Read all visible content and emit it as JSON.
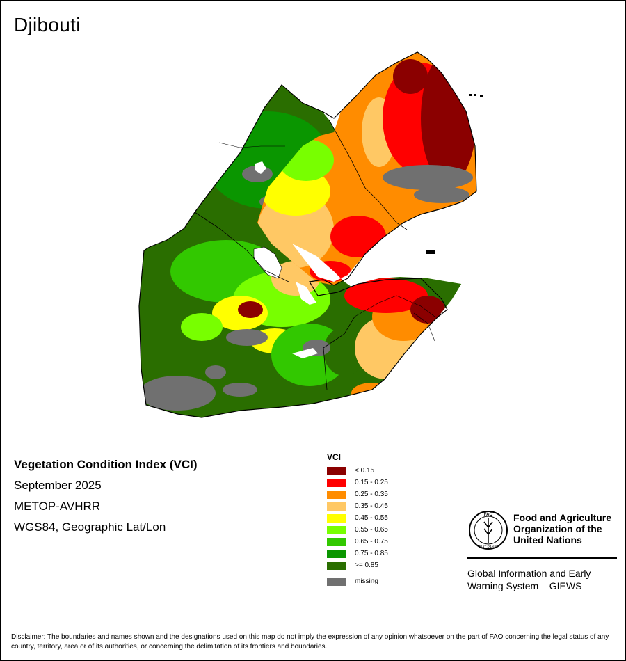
{
  "title": "Djibouti",
  "map_info": {
    "index_name": "Vegetation Condition Index (VCI)",
    "period": "September 2025",
    "sensor": "METOP-AVHRR",
    "projection": "WGS84, Geographic Lat/Lon"
  },
  "legend": {
    "title": "VCI",
    "classes": [
      {
        "label": "< 0.15",
        "color": "#8b0000"
      },
      {
        "label": "0.15 - 0.25",
        "color": "#ff0000"
      },
      {
        "label": "0.25 - 0.35",
        "color": "#ff8c00"
      },
      {
        "label": "0.35 - 0.45",
        "color": "#ffc864"
      },
      {
        "label": "0.45 - 0.55",
        "color": "#ffff00"
      },
      {
        "label": "0.55 - 0.65",
        "color": "#78ff00"
      },
      {
        "label": "0.65 - 0.75",
        "color": "#32c800"
      },
      {
        "label": "0.75 - 0.85",
        "color": "#0a9600"
      },
      {
        "label": ">= 0.85",
        "color": "#2a6e00"
      }
    ],
    "missing": {
      "label": "missing",
      "color": "#707070"
    }
  },
  "organization": {
    "name": "Food and Agriculture Organization of the United Nations",
    "logo_letters": "FAO",
    "logo_motto": "FIAT PANIS",
    "program": "Global Information and Early Warning System – GIEWS"
  },
  "disclaimer": "Disclaimer: The boundaries and names shown and the designations used on this map do not imply the expression of any opinion whatsoever on the part of FAO concerning the legal status of any country, territory, area or of its authorities, or concerning the delimitation of its frontiers and boundaries."
}
